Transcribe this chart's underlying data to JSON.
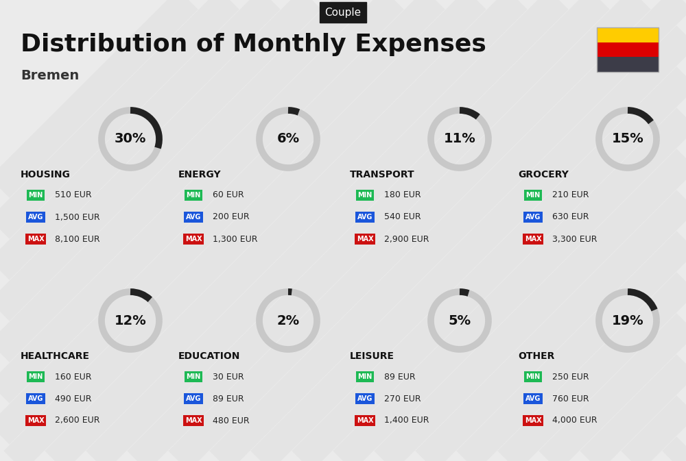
{
  "title": "Distribution of Monthly Expenses",
  "subtitle": "Bremen",
  "label_couple": "Couple",
  "bg_color": "#ebebeb",
  "categories": [
    {
      "name": "HOUSING",
      "percent": 30,
      "row": 0,
      "col": 0,
      "min": "510 EUR",
      "avg": "1,500 EUR",
      "max": "8,100 EUR"
    },
    {
      "name": "ENERGY",
      "percent": 6,
      "row": 0,
      "col": 1,
      "min": "60 EUR",
      "avg": "200 EUR",
      "max": "1,300 EUR"
    },
    {
      "name": "TRANSPORT",
      "percent": 11,
      "row": 0,
      "col": 2,
      "min": "180 EUR",
      "avg": "540 EUR",
      "max": "2,900 EUR"
    },
    {
      "name": "GROCERY",
      "percent": 15,
      "row": 0,
      "col": 3,
      "min": "210 EUR",
      "avg": "630 EUR",
      "max": "3,300 EUR"
    },
    {
      "name": "HEALTHCARE",
      "percent": 12,
      "row": 1,
      "col": 0,
      "min": "160 EUR",
      "avg": "490 EUR",
      "max": "2,600 EUR"
    },
    {
      "name": "EDUCATION",
      "percent": 2,
      "row": 1,
      "col": 1,
      "min": "30 EUR",
      "avg": "89 EUR",
      "max": "480 EUR"
    },
    {
      "name": "LEISURE",
      "percent": 5,
      "row": 1,
      "col": 2,
      "min": "89 EUR",
      "avg": "270 EUR",
      "max": "1,400 EUR"
    },
    {
      "name": "OTHER",
      "percent": 19,
      "row": 1,
      "col": 3,
      "min": "250 EUR",
      "avg": "760 EUR",
      "max": "4,000 EUR"
    }
  ],
  "color_min": "#1db954",
  "color_avg": "#1a56db",
  "color_max": "#cc1111",
  "color_circle_bg": "#c8c8c8",
  "color_circle_arc": "#222222",
  "flag_colors": [
    "#3c3c48",
    "#dd0000",
    "#ffcc00"
  ],
  "title_fontsize": 26,
  "subtitle_fontsize": 14,
  "cat_fontsize": 10,
  "badge_fontsize": 7,
  "pct_fontsize": 14,
  "value_fontsize": 9
}
